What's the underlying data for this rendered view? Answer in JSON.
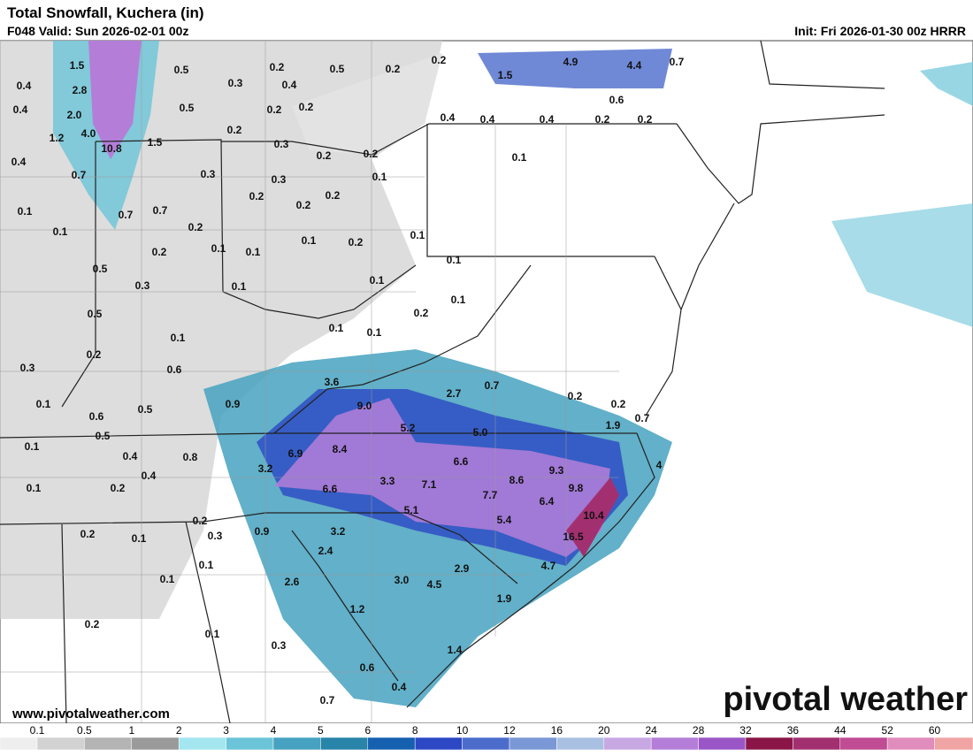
{
  "header": {
    "title": "Total Snowfall, Kuchera (in)",
    "valid": "F048 Valid: Sun 2026-02-01 00z",
    "init": "Init: Fri 2026-01-30 00z HRRR"
  },
  "labels": [
    "0.5",
    "0.3",
    "0.2",
    "0.4",
    "0.5",
    "0.2",
    "0.2",
    "1.5",
    "0.4",
    "2.8",
    "0.4",
    "2.0",
    "0.5",
    "0.2",
    "0.2",
    "1.2",
    "4.0",
    "10.8",
    "1.5",
    "0.2",
    "0.3",
    "0.2",
    "0.2",
    "0.4",
    "0.7",
    "0.3",
    "0.3",
    "0.1",
    "0.2",
    "0.2",
    "0.2",
    "0.1",
    "0.7",
    "0.7",
    "0.1",
    "0.2",
    "0.1",
    "0.2",
    "0.1",
    "0.1",
    "0.2",
    "0.1",
    "0.5",
    "0.1",
    "0.3",
    "0.1",
    "0.1",
    "0.1",
    "0.2",
    "0.5",
    "0.1",
    "0.1",
    "0.1",
    "0.2",
    "0.3",
    "0.6",
    "3.6",
    "0.7",
    "2.7",
    "0.2",
    "0.1",
    "0.6",
    "0.5",
    "0.9",
    "9.0",
    "0.2",
    "0.7",
    "1.9",
    "5.2",
    "5.0",
    "0.1",
    "0.5",
    "0.4",
    "0.8",
    "6.9",
    "8.4",
    "6.6",
    "4",
    "9.3",
    "0.4",
    "3.2",
    "3.3",
    "7.1",
    "8.6",
    "0.1",
    "0.2",
    "6.6",
    "7.7",
    "9.8",
    "6.4",
    "5.1",
    "5.4",
    "10.4",
    "0.2",
    "0.9",
    "3.2",
    "0.2",
    "0.1",
    "0.3",
    "16.5",
    "2.4",
    "0.1",
    "4.7",
    "2.9",
    "0.1",
    "2.6",
    "3.0",
    "4.5",
    "1.9",
    "1.2",
    "0.2",
    "0.1",
    "0.3",
    "1.4",
    "0.6",
    "0.4",
    "0.7",
    "1.5",
    "4.9",
    "4.4",
    "0.7",
    "0.6",
    "0.4",
    "0.4",
    "0.4",
    "0.2",
    "0.2",
    "0.1"
  ],
  "footer": {
    "url": "www.pivotalweather.com",
    "logo": "pivotal weather"
  },
  "colorbar": {
    "labels": [
      "0.1",
      "0.5",
      "1",
      "2",
      "3",
      "4",
      "5",
      "6",
      "8",
      "10",
      "12",
      "16",
      "20",
      "24",
      "28",
      "32",
      "36",
      "44",
      "52",
      "60"
    ],
    "colors": [
      "#eeeeee",
      "#d2d2d2",
      "#b4b4b4",
      "#9a9a9a",
      "#a4e6f0",
      "#6cc4d8",
      "#46a2c0",
      "#2884a8",
      "#1660b0",
      "#2c48c4",
      "#4c6ccc",
      "#7a98d6",
      "#aac0e2",
      "#c8a8e2",
      "#b47ed8",
      "#9a56c6",
      "#8a1648",
      "#a23070",
      "#c04c94",
      "#e08cbc",
      "#f0a4a4",
      "#e47c74",
      "#dc5c48",
      "#e27844",
      "#ec9c64",
      "#f4c28c",
      "#fbe6b8"
    ]
  }
}
